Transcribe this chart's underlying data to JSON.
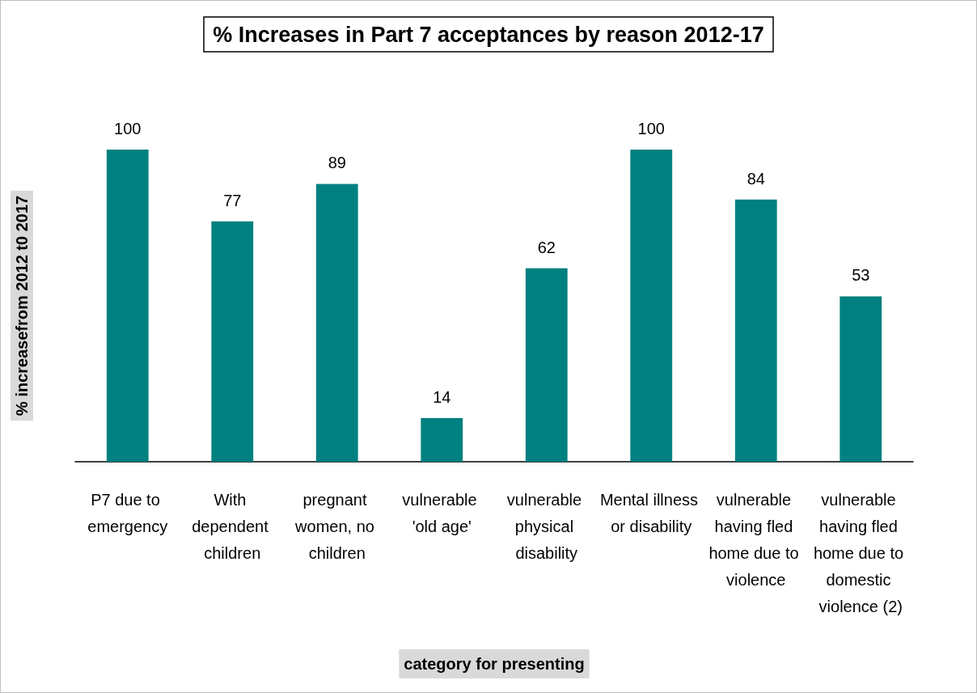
{
  "chart_data": {
    "type": "bar",
    "title": "% Increases in Part 7 acceptances by reason 2012-17",
    "xlabel": "category for presenting",
    "ylabel": "% increasefrom 2012 t0 2017",
    "categories": [
      "P7 due to emergency",
      "With dependent children",
      "pregnant women, no children",
      "vulnerable 'old age'",
      "vulnerable physical disability",
      "Mental illness or disability",
      "vulnerable having fled home due to violence",
      "vulnerable having fled home due to domestic violence (2)"
    ],
    "values": [
      100,
      77,
      89,
      14,
      62,
      100,
      84,
      53
    ],
    "color": "#008080",
    "data_labels": true,
    "grid": false,
    "tick_labels": "x"
  }
}
